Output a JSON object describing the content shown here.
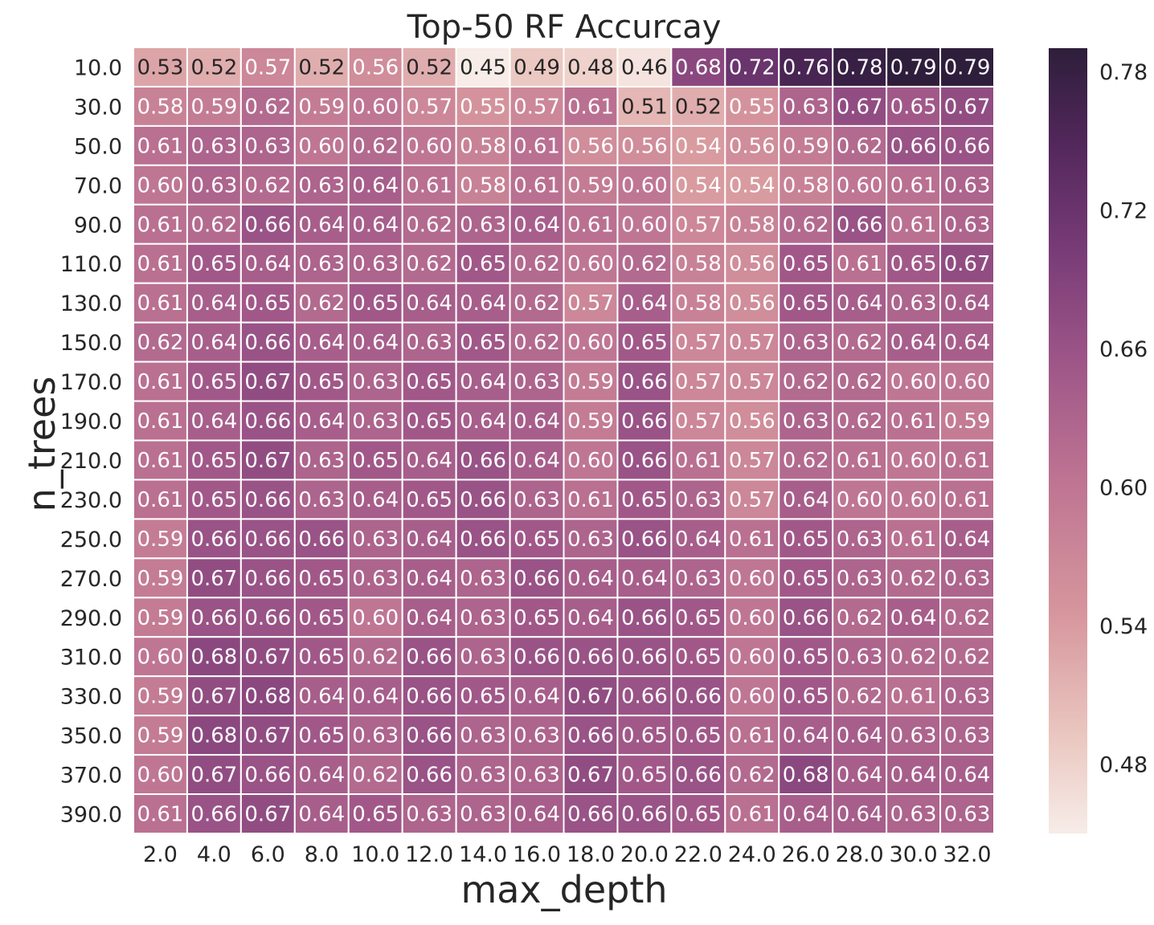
{
  "chart_data": {
    "type": "heatmap",
    "title": "Top-50 RF Accurcay",
    "xlabel": "max_depth",
    "ylabel": "n_trees",
    "x_categories": [
      "2.0",
      "4.0",
      "6.0",
      "8.0",
      "10.0",
      "12.0",
      "14.0",
      "16.0",
      "18.0",
      "20.0",
      "22.0",
      "24.0",
      "26.0",
      "28.0",
      "30.0",
      "32.0"
    ],
    "y_categories": [
      "10.0",
      "30.0",
      "50.0",
      "70.0",
      "90.0",
      "110.0",
      "130.0",
      "150.0",
      "170.0",
      "190.0",
      "210.0",
      "230.0",
      "250.0",
      "270.0",
      "290.0",
      "310.0",
      "330.0",
      "350.0",
      "370.0",
      "390.0"
    ],
    "values": [
      [
        0.53,
        0.52,
        0.57,
        0.52,
        0.56,
        0.52,
        0.45,
        0.49,
        0.48,
        0.46,
        0.68,
        0.72,
        0.76,
        0.78,
        0.79,
        0.79
      ],
      [
        0.58,
        0.59,
        0.62,
        0.59,
        0.6,
        0.57,
        0.55,
        0.57,
        0.61,
        0.51,
        0.52,
        0.55,
        0.63,
        0.67,
        0.65,
        0.67
      ],
      [
        0.61,
        0.63,
        0.63,
        0.6,
        0.62,
        0.6,
        0.58,
        0.61,
        0.56,
        0.56,
        0.54,
        0.56,
        0.59,
        0.62,
        0.66,
        0.66
      ],
      [
        0.6,
        0.63,
        0.62,
        0.63,
        0.64,
        0.61,
        0.58,
        0.61,
        0.59,
        0.6,
        0.54,
        0.54,
        0.58,
        0.6,
        0.61,
        0.63
      ],
      [
        0.61,
        0.62,
        0.66,
        0.64,
        0.64,
        0.62,
        0.63,
        0.64,
        0.61,
        0.6,
        0.57,
        0.58,
        0.62,
        0.66,
        0.61,
        0.63
      ],
      [
        0.61,
        0.65,
        0.64,
        0.63,
        0.63,
        0.62,
        0.65,
        0.62,
        0.6,
        0.62,
        0.58,
        0.56,
        0.65,
        0.61,
        0.65,
        0.67
      ],
      [
        0.61,
        0.64,
        0.65,
        0.62,
        0.65,
        0.64,
        0.64,
        0.62,
        0.57,
        0.64,
        0.58,
        0.56,
        0.65,
        0.64,
        0.63,
        0.64
      ],
      [
        0.62,
        0.64,
        0.66,
        0.64,
        0.64,
        0.63,
        0.65,
        0.62,
        0.6,
        0.65,
        0.57,
        0.57,
        0.63,
        0.62,
        0.64,
        0.64
      ],
      [
        0.61,
        0.65,
        0.67,
        0.65,
        0.63,
        0.65,
        0.64,
        0.63,
        0.59,
        0.66,
        0.57,
        0.57,
        0.62,
        0.62,
        0.6,
        0.6
      ],
      [
        0.61,
        0.64,
        0.66,
        0.64,
        0.63,
        0.65,
        0.64,
        0.64,
        0.59,
        0.66,
        0.57,
        0.56,
        0.63,
        0.62,
        0.61,
        0.59
      ],
      [
        0.61,
        0.65,
        0.67,
        0.63,
        0.65,
        0.64,
        0.66,
        0.64,
        0.6,
        0.66,
        0.61,
        0.57,
        0.62,
        0.61,
        0.6,
        0.61
      ],
      [
        0.61,
        0.65,
        0.66,
        0.63,
        0.64,
        0.65,
        0.66,
        0.63,
        0.61,
        0.65,
        0.63,
        0.57,
        0.64,
        0.6,
        0.6,
        0.61
      ],
      [
        0.59,
        0.66,
        0.66,
        0.66,
        0.63,
        0.64,
        0.66,
        0.65,
        0.63,
        0.66,
        0.64,
        0.61,
        0.65,
        0.63,
        0.61,
        0.64
      ],
      [
        0.59,
        0.67,
        0.66,
        0.65,
        0.63,
        0.64,
        0.63,
        0.66,
        0.64,
        0.64,
        0.63,
        0.6,
        0.65,
        0.63,
        0.62,
        0.63
      ],
      [
        0.59,
        0.66,
        0.66,
        0.65,
        0.6,
        0.64,
        0.63,
        0.65,
        0.64,
        0.66,
        0.65,
        0.6,
        0.66,
        0.62,
        0.64,
        0.62
      ],
      [
        0.6,
        0.68,
        0.67,
        0.65,
        0.62,
        0.66,
        0.63,
        0.66,
        0.66,
        0.66,
        0.65,
        0.6,
        0.65,
        0.63,
        0.62,
        0.62
      ],
      [
        0.59,
        0.67,
        0.68,
        0.64,
        0.64,
        0.66,
        0.65,
        0.64,
        0.67,
        0.66,
        0.66,
        0.6,
        0.65,
        0.62,
        0.61,
        0.63
      ],
      [
        0.59,
        0.68,
        0.67,
        0.65,
        0.63,
        0.66,
        0.63,
        0.63,
        0.66,
        0.65,
        0.65,
        0.61,
        0.64,
        0.64,
        0.63,
        0.63
      ],
      [
        0.6,
        0.67,
        0.66,
        0.64,
        0.62,
        0.66,
        0.63,
        0.63,
        0.67,
        0.65,
        0.66,
        0.62,
        0.68,
        0.64,
        0.64,
        0.64
      ],
      [
        0.61,
        0.66,
        0.67,
        0.64,
        0.65,
        0.63,
        0.63,
        0.64,
        0.66,
        0.66,
        0.65,
        0.61,
        0.64,
        0.64,
        0.63,
        0.63
      ]
    ],
    "value_format": "2 decimals",
    "colorbar": {
      "min": 0.45,
      "max": 0.79,
      "ticks": [
        "0.48",
        "0.54",
        "0.60",
        "0.66",
        "0.72",
        "0.78"
      ],
      "placement": "right"
    },
    "colormap": {
      "name": "cubehelix light-to-dark purple",
      "low_color": "#f7ece8",
      "high_color": "#2e1e3b"
    },
    "grid": "white cell borders",
    "annotated": true
  }
}
